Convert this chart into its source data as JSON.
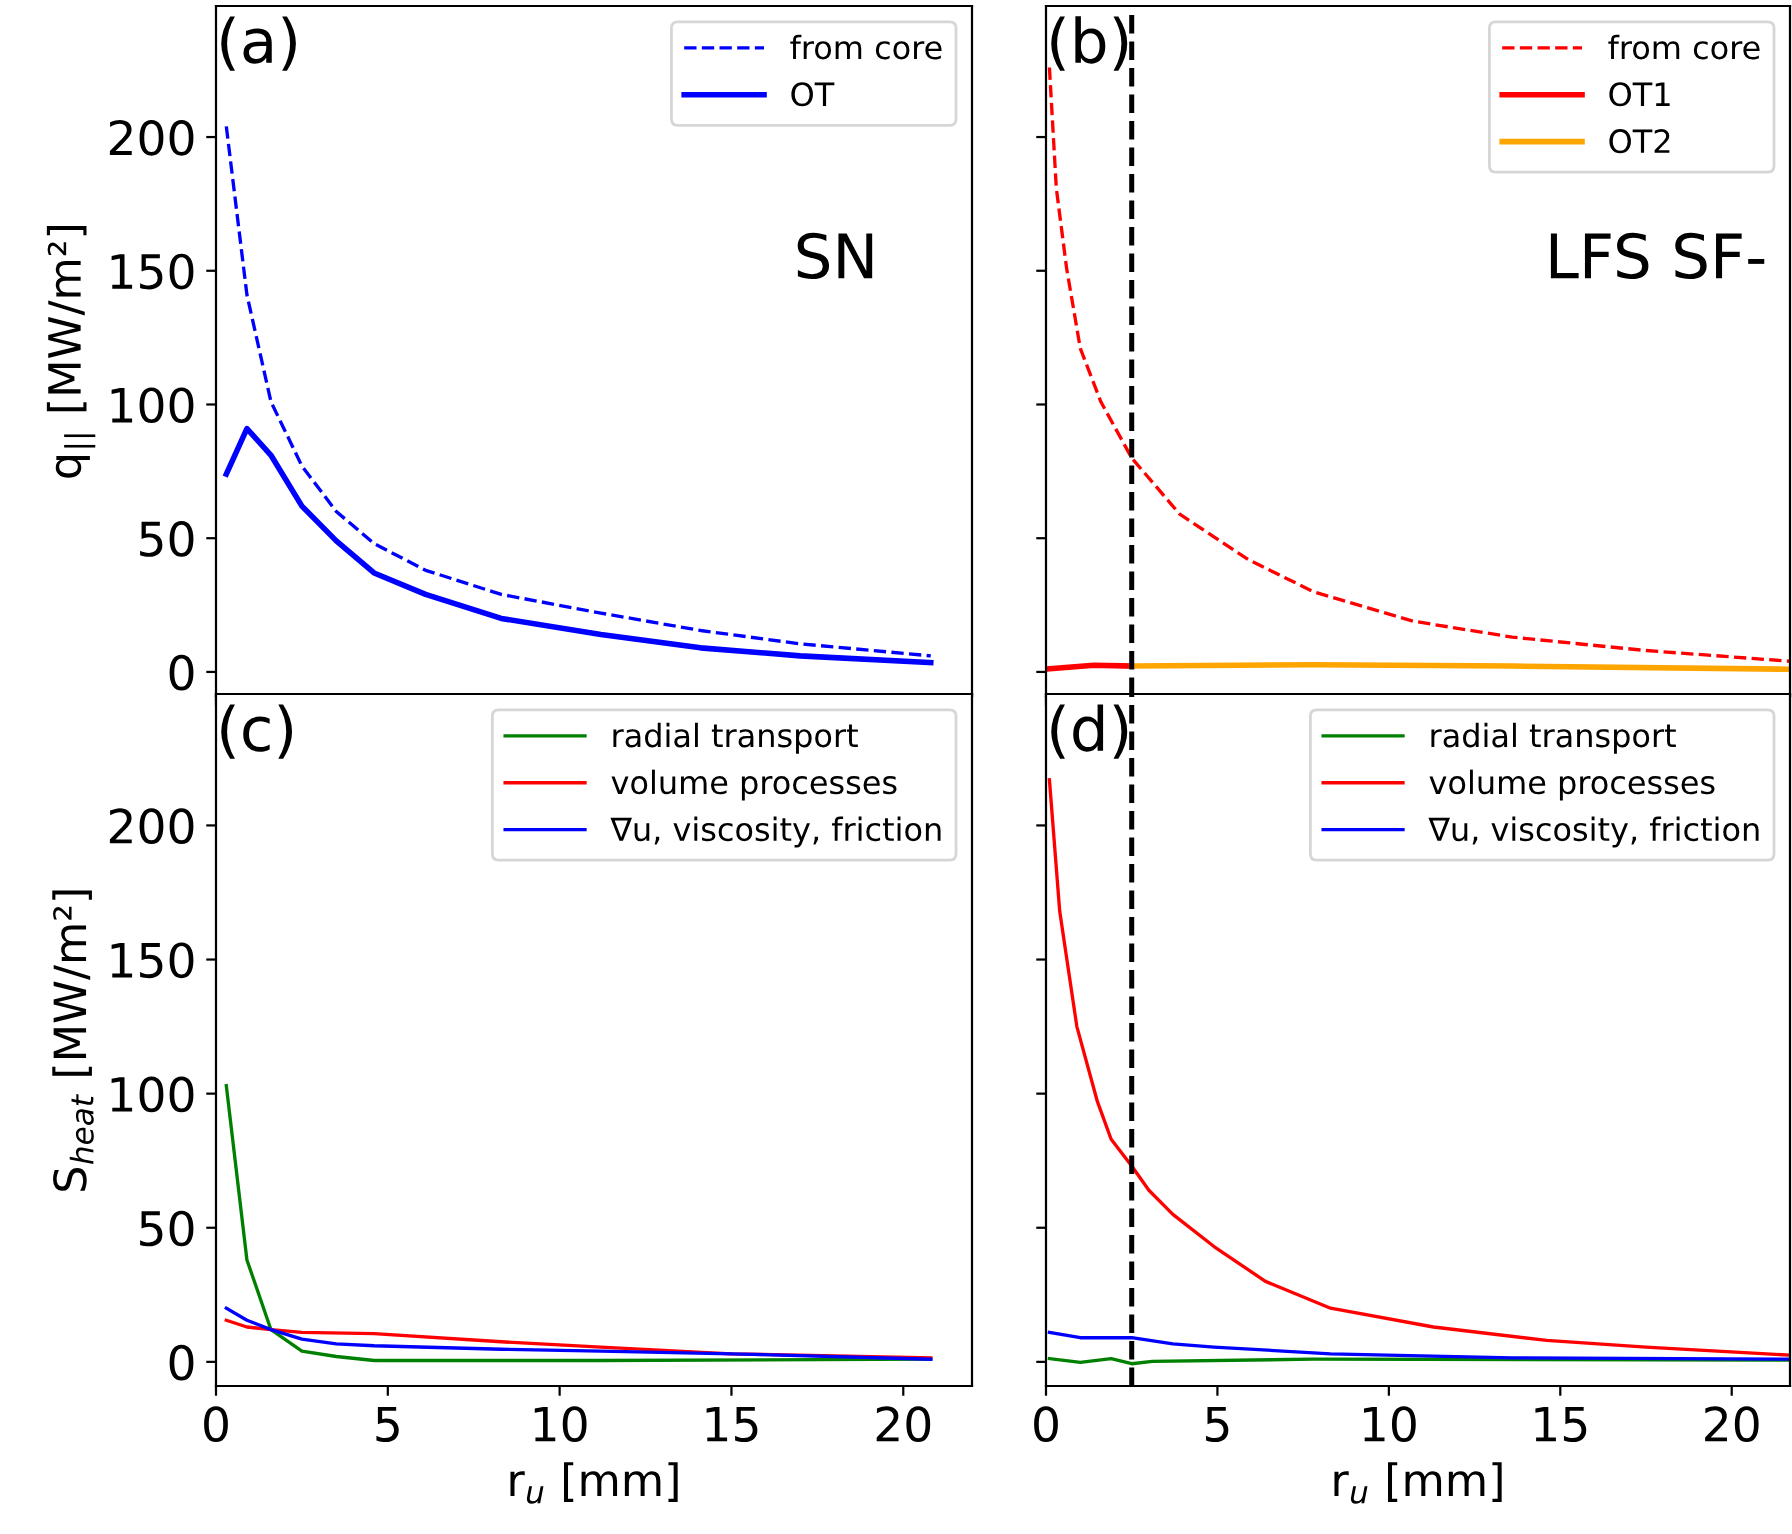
{
  "chart_data": [
    {
      "type": "line",
      "ylabel": "q$_{||}$ [MW/m²]",
      "annotations": [
        "(a)",
        "SN"
      ],
      "xlim": [
        0,
        22
      ],
      "ylim": [
        -9,
        249
      ],
      "xticks": [
        0,
        5,
        10,
        15,
        20
      ],
      "yticks": [
        0,
        50,
        100,
        150,
        200
      ],
      "tick_labels": "y",
      "legend": "top right",
      "grid": false,
      "series": [
        {
          "name": "from core",
          "color": "#0000ff",
          "line_style": "dashed",
          "x": [
            0.3,
            0.9,
            1.6,
            2.5,
            3.5,
            4.6,
            6.1,
            8.3,
            11.2,
            14.1,
            17.0,
            20.8
          ],
          "values": [
            204,
            141,
            101,
            77,
            60,
            48,
            38,
            29,
            22,
            15.5,
            10.5,
            6
          ]
        },
        {
          "name": "OT",
          "color": "#0000ff",
          "line_style": "solid",
          "x": [
            0.3,
            0.9,
            1.6,
            2.5,
            3.5,
            4.6,
            6.1,
            8.3,
            11.2,
            14.1,
            17.0,
            20.8
          ],
          "values": [
            74,
            91,
            81,
            62,
            49,
            37,
            29,
            20,
            14,
            9,
            6,
            3.5
          ]
        }
      ]
    },
    {
      "type": "line",
      "annotations": [
        "(b)",
        "LFS SF-"
      ],
      "xlim": [
        0,
        21.7
      ],
      "ylim": [
        -9,
        249
      ],
      "xticks": [
        0,
        5,
        10,
        15,
        20
      ],
      "yticks": [
        0,
        50,
        100,
        150,
        200
      ],
      "tick_labels": false,
      "legend": "top right",
      "grid": false,
      "ref_lines": [
        {
          "axis": "x",
          "value": 2.5,
          "color": "#000000",
          "line_style": "dashed"
        }
      ],
      "series": [
        {
          "name": "from core",
          "color": "#ff0000",
          "line_style": "dashed",
          "x": [
            0.1,
            0.3,
            0.6,
            1.0,
            1.6,
            2.5,
            3.9,
            5.9,
            7.8,
            10.7,
            13.6,
            17.5,
            21.7
          ],
          "values": [
            226,
            181,
            151,
            121,
            101,
            80,
            59,
            42,
            30,
            19,
            13,
            8,
            4
          ]
        },
        {
          "name": "OT1",
          "color": "#ff0000",
          "line_style": "solid",
          "x": [
            0.1,
            1.4,
            2.5
          ],
          "values": [
            1.2,
            2.5,
            2.2
          ]
        },
        {
          "name": "OT2",
          "color": "#ffa500",
          "line_style": "solid",
          "x": [
            2.5,
            7.8,
            13.6,
            21.7
          ],
          "values": [
            2.2,
            2.7,
            2.2,
            1
          ]
        }
      ]
    },
    {
      "type": "line",
      "xlabel": "r$_{u}$ [mm]",
      "ylabel": "S$_{heat}$ [MW/m²]",
      "annotations": [
        "(c)"
      ],
      "xlim": [
        0,
        22
      ],
      "ylim": [
        -9,
        249
      ],
      "xticks": [
        0,
        5,
        10,
        15,
        20
      ],
      "yticks": [
        0,
        50,
        100,
        150,
        200
      ],
      "legend": "top right",
      "grid": false,
      "series": [
        {
          "name": "radial transport",
          "color": "#008000",
          "line_style": "solid",
          "x": [
            0.3,
            0.9,
            1.6,
            2.5,
            3.5,
            4.6,
            11.2,
            20.8
          ],
          "values": [
            103,
            38,
            12,
            4,
            2,
            0.5,
            0.5,
            1
          ]
        },
        {
          "name": "volume processes",
          "color": "#ff0000",
          "line_style": "solid",
          "x": [
            0.3,
            0.9,
            1.6,
            2.5,
            4.6,
            8.3,
            11.2,
            15.0,
            20.8
          ],
          "values": [
            15.5,
            13,
            12,
            11,
            10.5,
            7.5,
            5.5,
            3,
            1.5
          ]
        },
        {
          "name": "∇u, viscosity, friction",
          "color": "#0000ff",
          "line_style": "solid",
          "x": [
            0.3,
            0.9,
            1.6,
            2.5,
            3.5,
            4.6,
            8.3,
            11.2,
            15.0,
            20.8
          ],
          "values": [
            20,
            15.5,
            12,
            8.5,
            6.7,
            6,
            4.7,
            4,
            3,
            1
          ]
        }
      ]
    },
    {
      "type": "line",
      "xlabel": "r$_{u}$ [mm]",
      "annotations": [
        "(d)"
      ],
      "xlim": [
        0,
        21.7
      ],
      "ylim": [
        -9,
        249
      ],
      "xticks": [
        0,
        5,
        10,
        15,
        20
      ],
      "yticks": [
        0,
        50,
        100,
        150,
        200
      ],
      "tick_labels": "x",
      "legend": "top right",
      "grid": false,
      "ref_lines": [
        {
          "axis": "x",
          "value": 2.5,
          "color": "#000000",
          "line_style": "dashed"
        }
      ],
      "series": [
        {
          "name": "radial transport",
          "color": "#008000",
          "line_style": "solid",
          "x": [
            0.1,
            1.0,
            1.9,
            2.5,
            3.1,
            7.8,
            21.7
          ],
          "values": [
            1.2,
            -0.2,
            1.2,
            -0.7,
            0.2,
            1,
            0.7
          ]
        },
        {
          "name": "volume processes",
          "color": "#ff0000",
          "line_style": "solid",
          "x": [
            0.1,
            0.4,
            0.9,
            1.5,
            1.9,
            2.5,
            3.0,
            3.7,
            4.9,
            6.4,
            8.3,
            11.3,
            14.6,
            17.5,
            21.7
          ],
          "values": [
            217,
            168,
            125,
            97,
            83,
            73,
            64,
            55,
            43,
            30,
            20,
            13,
            8,
            5.5,
            2.5
          ]
        },
        {
          "name": "∇u, viscosity, friction",
          "color": "#0000ff",
          "line_style": "solid",
          "x": [
            0.1,
            1.0,
            2.5,
            3.7,
            4.9,
            8.3,
            13.6,
            21.7
          ],
          "values": [
            11,
            9,
            9,
            6.7,
            5.5,
            3,
            1.5,
            1
          ]
        }
      ]
    }
  ]
}
